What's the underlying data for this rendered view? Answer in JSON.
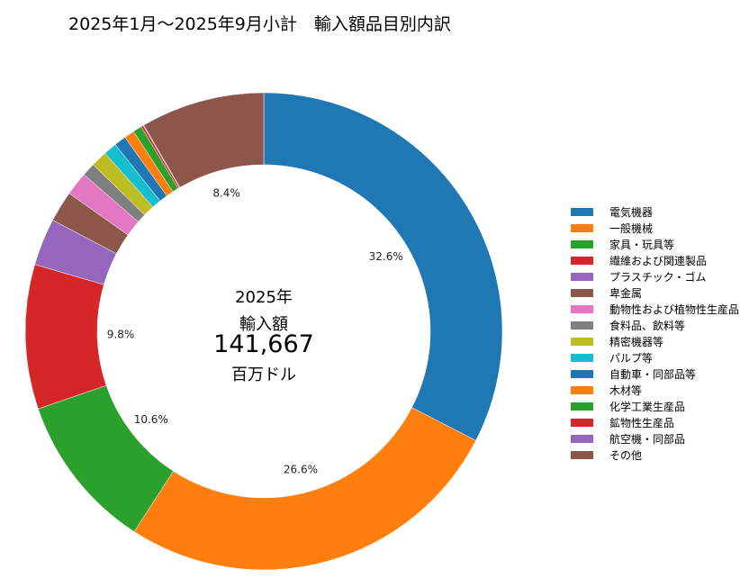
{
  "title": "2025年1月～2025年9月小計　輸入額品目別内訳",
  "center": {
    "year": "2025年",
    "label": "輸入額",
    "value": "141,667",
    "unit": "百万ドル"
  },
  "chart_data": {
    "type": "pie",
    "title": "2025年1月～2025年9月小計　輸入額品目別内訳",
    "donut": true,
    "start": "top, clockwise",
    "legend_position": "right",
    "labels": [
      "電気機器",
      "一般機械",
      "家具・玩具等",
      "繊維および関連製品",
      "プラスチック・ゴム",
      "卑金属",
      "動物性および植物性生産品",
      "食料品、飲料等",
      "精密機器等",
      "パルプ等",
      "自動車・同部品等",
      "木材等",
      "化学工業生産品",
      "鉱物性生産品",
      "航空機・同部品",
      "その他"
    ],
    "values": [
      32.6,
      26.6,
      10.6,
      9.8,
      3.2,
      2.1,
      1.6,
      0.9,
      1.1,
      0.9,
      0.8,
      0.7,
      0.6,
      0.15,
      0.05,
      8.4
    ],
    "data_labels": [
      "32.6%",
      "26.6%",
      "10.6%",
      "9.8%",
      "",
      "",
      "",
      "",
      "",
      "",
      "",
      "",
      "",
      "",
      "",
      "8.4%"
    ],
    "colors": [
      "#1f77b4",
      "#ff7f0e",
      "#2ca02c",
      "#d62728",
      "#9467bd",
      "#8c564b",
      "#e377c2",
      "#7f7f7f",
      "#bcbd22",
      "#17becf",
      "#1f77b4",
      "#ff7f0e",
      "#2ca02c",
      "#d62728",
      "#9467bd",
      "#8c564b"
    ]
  }
}
